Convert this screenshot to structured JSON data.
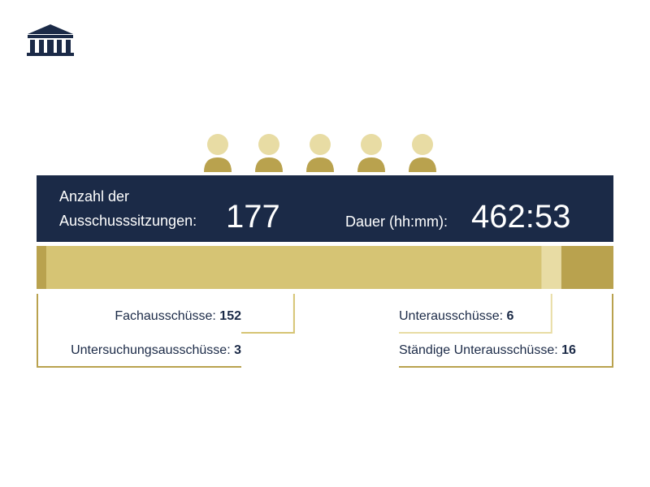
{
  "header": {
    "count_label": "Anzahl der Ausschusssitzungen:",
    "count": 177,
    "duration_label": "Dauer (hh:mm):",
    "duration": "462:53"
  },
  "chart_data": {
    "type": "stacked-bar",
    "series": [
      {
        "name": "Untersuchungsausschüsse:",
        "color": "#b9a24e",
        "values": [
          3
        ]
      },
      {
        "name": "Fachausschüsse:",
        "color": "#d6c474",
        "values": [
          152
        ]
      },
      {
        "name": "Unterausschüsse:",
        "color": "#e8dca4",
        "values": [
          6
        ]
      },
      {
        "name": "Ständige Unterausschüsse:",
        "color": "#b9a24e",
        "values": [
          16
        ]
      }
    ]
  }
}
